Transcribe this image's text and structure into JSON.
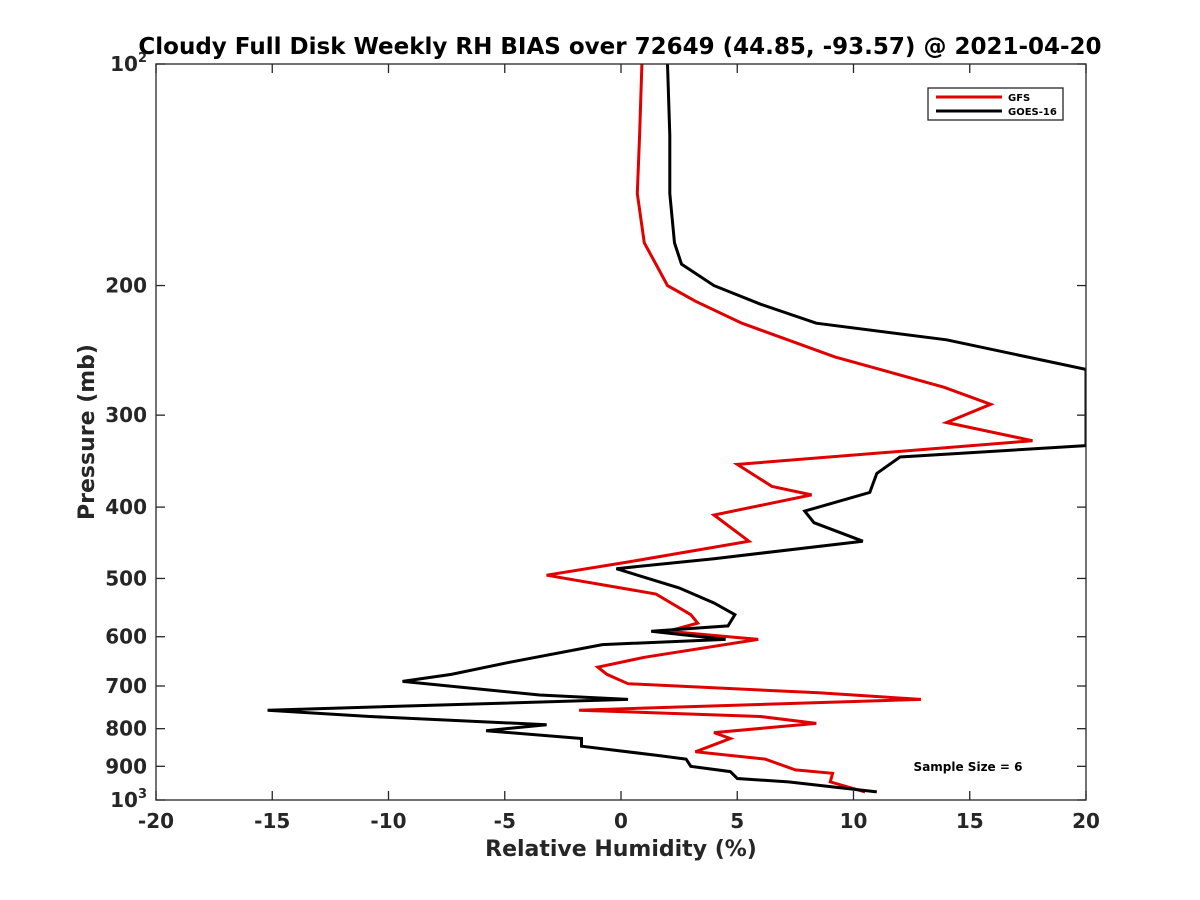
{
  "chart_data": {
    "type": "line",
    "title": "Cloudy Full Disk Weekly RH BIAS over 72649 (44.85, -93.57) @ 2021-04-20",
    "xlabel": "Relative Humidity (%)",
    "ylabel": "Pressure (mb)",
    "xlim": [
      -20,
      20
    ],
    "ylim": [
      100,
      1000
    ],
    "y_scale": "log",
    "y_reversed": true,
    "grid": false,
    "legend_position": "top-right",
    "x_ticks": [
      "-20",
      "-15",
      "-10",
      "-5",
      "0",
      "5",
      "10",
      "15",
      "20"
    ],
    "y_ticks": [
      {
        "value": 100,
        "base": "10",
        "exp": "2"
      },
      {
        "value": 200,
        "label": "200"
      },
      {
        "value": 300,
        "label": "300"
      },
      {
        "value": 400,
        "label": "400"
      },
      {
        "value": 500,
        "label": "500"
      },
      {
        "value": 600,
        "label": "600"
      },
      {
        "value": 700,
        "label": "700"
      },
      {
        "value": 800,
        "label": "800"
      },
      {
        "value": 900,
        "label": "900"
      },
      {
        "value": 1000,
        "base": "10",
        "exp": "3"
      }
    ],
    "series": [
      {
        "name": "GFS",
        "color": "#e00000",
        "points": [
          [
            0.9,
            100
          ],
          [
            0.8,
            125
          ],
          [
            0.7,
            150
          ],
          [
            1.0,
            175
          ],
          [
            1.5,
            187
          ],
          [
            2.0,
            200
          ],
          [
            3.2,
            210
          ],
          [
            5.2,
            225
          ],
          [
            9.2,
            250
          ],
          [
            13.9,
            275
          ],
          [
            15.9,
            290
          ],
          [
            14.0,
            307
          ],
          [
            17.7,
            325
          ],
          [
            5.0,
            350
          ],
          [
            6.5,
            375
          ],
          [
            8.2,
            385
          ],
          [
            4.0,
            410
          ],
          [
            5.5,
            445
          ],
          [
            0.3,
            475
          ],
          [
            -3.2,
            495
          ],
          [
            1.5,
            525
          ],
          [
            3.0,
            560
          ],
          [
            3.3,
            575
          ],
          [
            2.0,
            590
          ],
          [
            5.9,
            605
          ],
          [
            1.0,
            640
          ],
          [
            -1.0,
            660
          ],
          [
            -0.6,
            675
          ],
          [
            0.3,
            695
          ],
          [
            8.5,
            715
          ],
          [
            12.9,
            730
          ],
          [
            -1.8,
            755
          ],
          [
            6.0,
            770
          ],
          [
            8.4,
            787
          ],
          [
            4.0,
            810
          ],
          [
            4.7,
            825
          ],
          [
            3.2,
            860
          ],
          [
            6.2,
            880
          ],
          [
            7.5,
            910
          ],
          [
            9.1,
            920
          ],
          [
            9.0,
            945
          ],
          [
            10.5,
            975
          ]
        ]
      },
      {
        "name": "GOES-16",
        "color": "#000000",
        "points": [
          [
            2.0,
            100
          ],
          [
            2.1,
            125
          ],
          [
            2.1,
            150
          ],
          [
            2.3,
            175
          ],
          [
            2.6,
            187
          ],
          [
            4.0,
            200
          ],
          [
            6.0,
            212
          ],
          [
            8.4,
            225
          ],
          [
            14.0,
            237
          ],
          [
            20,
            260
          ],
          [
            20,
            330
          ],
          [
            12.0,
            342
          ],
          [
            11.0,
            360
          ],
          [
            10.7,
            382
          ],
          [
            7.9,
            405
          ],
          [
            8.3,
            420
          ],
          [
            10.4,
            445
          ],
          [
            4.0,
            470
          ],
          [
            -0.2,
            485
          ],
          [
            2.5,
            515
          ],
          [
            4.0,
            540
          ],
          [
            4.9,
            560
          ],
          [
            4.6,
            580
          ],
          [
            1.3,
            590
          ],
          [
            4.5,
            605
          ],
          [
            -0.8,
            615
          ],
          [
            -4.8,
            650
          ],
          [
            -7.3,
            675
          ],
          [
            -9.4,
            690
          ],
          [
            -3.5,
            720
          ],
          [
            0.3,
            730
          ],
          [
            -15.2,
            755
          ],
          [
            -10.8,
            770
          ],
          [
            -3.2,
            790
          ],
          [
            -5.8,
            805
          ],
          [
            -1.7,
            825
          ],
          [
            -1.7,
            845
          ],
          [
            1.6,
            870
          ],
          [
            2.8,
            880
          ],
          [
            3.0,
            900
          ],
          [
            4.7,
            915
          ],
          [
            5.0,
            935
          ],
          [
            7.2,
            945
          ],
          [
            11.0,
            975
          ]
        ]
      }
    ],
    "annotation": "Sample Size = 6"
  }
}
